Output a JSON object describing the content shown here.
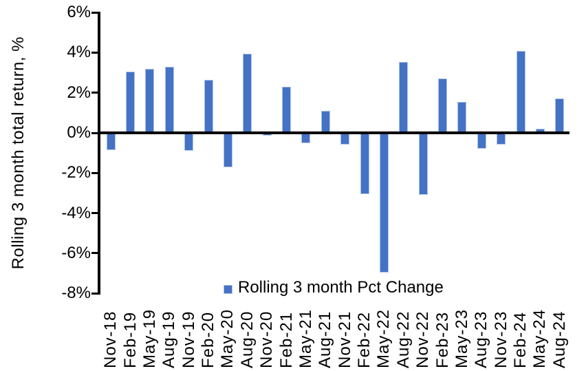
{
  "chart_data": {
    "type": "bar",
    "title": "",
    "xlabel": "",
    "ylabel": "Rolling 3 month total return, %",
    "series_name": "Rolling 3 month Pct Change",
    "categories": [
      "Nov-18",
      "Feb-19",
      "May-19",
      "Aug-19",
      "Nov-19",
      "Feb-20",
      "May-20",
      "Aug-20",
      "Nov-20",
      "Feb-21",
      "May-21",
      "Aug-21",
      "Nov-21",
      "Feb-22",
      "May-22",
      "Aug-22",
      "Nov-22",
      "Feb-23",
      "May-23",
      "Aug-23",
      "Nov-23",
      "Feb-24",
      "May-24",
      "Aug-24"
    ],
    "values": [
      -0.85,
      3.05,
      3.2,
      3.3,
      -0.9,
      2.65,
      -1.7,
      3.95,
      -0.15,
      2.3,
      -0.5,
      1.1,
      -0.6,
      -3.05,
      -6.95,
      3.55,
      -3.1,
      2.7,
      1.55,
      -0.8,
      -0.6,
      4.1,
      0.2,
      1.7
    ],
    "ylim": [
      -8,
      6
    ],
    "ytick_step": 2,
    "ytick_labels": [
      "6%",
      "4%",
      "2%",
      "0%",
      "-2%",
      "-4%",
      "-6%",
      "-8%"
    ],
    "ytick_format": "percent",
    "grid": "off",
    "legend_position": "bottom-center-inside",
    "bar_color": "#4472C4",
    "bar_border_color": "#AEC3E8",
    "axis_color": "#000000",
    "background_color": "#FFFFFF"
  },
  "legend": {
    "label": "Rolling 3 month Pct Change"
  },
  "y_axis": {
    "label": "Rolling 3 month total return, %"
  }
}
